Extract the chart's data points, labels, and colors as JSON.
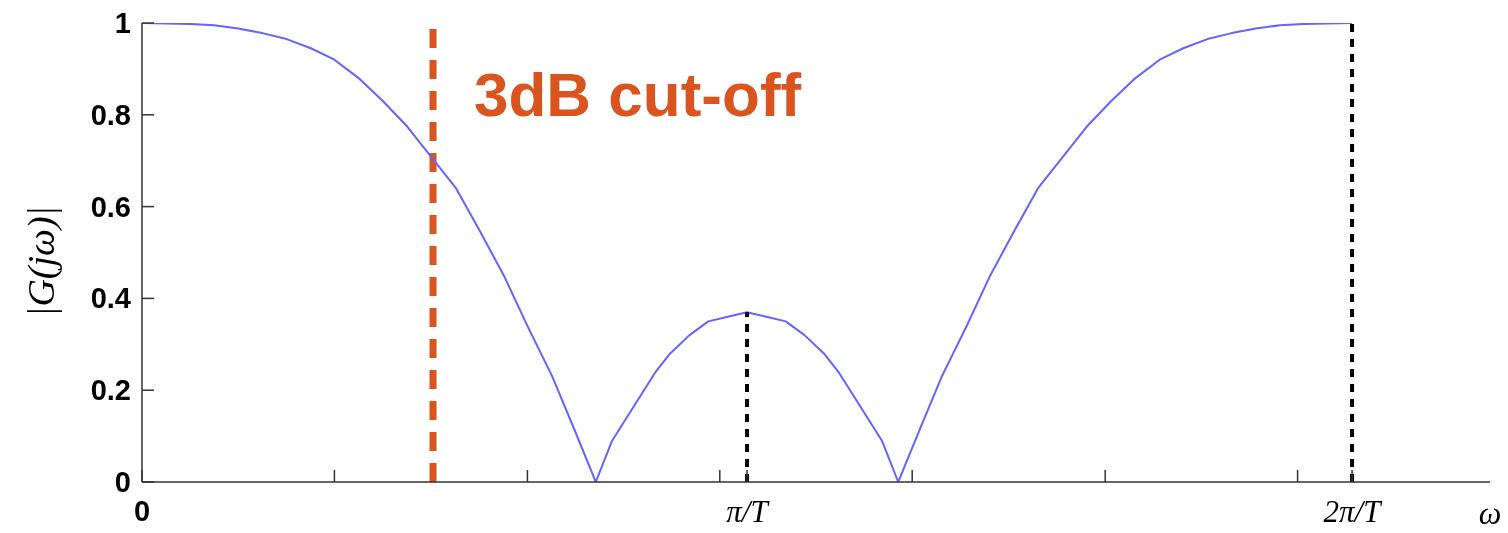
{
  "chart_data": {
    "type": "line",
    "xlabel": "ω",
    "ylabel": "|G(jω)|",
    "xlim": [
      0,
      2.228
    ],
    "xticks": [
      0,
      {
        "value": 0.318,
        "label": null
      },
      {
        "value": 0.637,
        "label": null
      },
      {
        "value": 0.955,
        "label": null
      },
      {
        "value": 1,
        "label": "π/T"
      },
      {
        "value": 1.273,
        "label": null
      },
      {
        "value": 1.592,
        "label": null
      },
      {
        "value": 1.91,
        "label": null
      },
      {
        "value": 2,
        "label": "2π/T"
      }
    ],
    "ylim": [
      0,
      1
    ],
    "yticks": [
      0,
      0.2,
      0.4,
      0.6,
      0.8,
      1
    ],
    "series": [
      {
        "color": "#6464ff",
        "x": [
          0,
          0.08,
          0.119,
          0.159,
          0.199,
          0.239,
          0.279,
          0.318,
          0.358,
          0.398,
          0.438,
          0.477,
          0.519,
          0.557,
          0.598,
          0.637,
          0.678,
          0.716,
          0.75,
          0.777,
          0.801,
          0.825,
          0.849,
          0.873,
          0.905,
          0.936,
          0.968,
          1,
          1.032,
          1.064,
          1.095,
          1.127,
          1.151,
          1.175,
          1.199,
          1.223,
          1.25,
          1.284,
          1.322,
          1.363,
          1.402,
          1.443,
          1.481,
          1.523,
          1.562,
          1.602,
          1.642,
          1.682,
          1.721,
          1.761,
          1.801,
          1.841,
          1.881,
          1.92,
          2
        ],
        "values": [
          1,
          0.998,
          0.995,
          0.988,
          0.978,
          0.965,
          0.945,
          0.92,
          0.88,
          0.83,
          0.775,
          0.71,
          0.64,
          0.55,
          0.45,
          0.34,
          0.23,
          0.11,
          0,
          0.09,
          0.14,
          0.19,
          0.24,
          0.28,
          0.32,
          0.35,
          0.36,
          0.37,
          0.36,
          0.35,
          0.32,
          0.28,
          0.24,
          0.19,
          0.14,
          0.09,
          0,
          0.11,
          0.23,
          0.34,
          0.45,
          0.55,
          0.64,
          0.71,
          0.775,
          0.83,
          0.88,
          0.92,
          0.945,
          0.965,
          0.978,
          0.988,
          0.995,
          0.998,
          1
        ]
      },
      {
        "color": "#000000",
        "line_style": "dotted",
        "x": [
          1,
          1
        ],
        "values": [
          0,
          0.37
        ]
      }
    ],
    "ref_lines": [
      {
        "axis": "x",
        "value": 0.481,
        "label": "3dB cut-off",
        "color": "#d9541e",
        "line_style": "dashed"
      },
      {
        "axis": "x",
        "value": 2,
        "color": "#000000",
        "line_style": "dotted"
      }
    ]
  }
}
